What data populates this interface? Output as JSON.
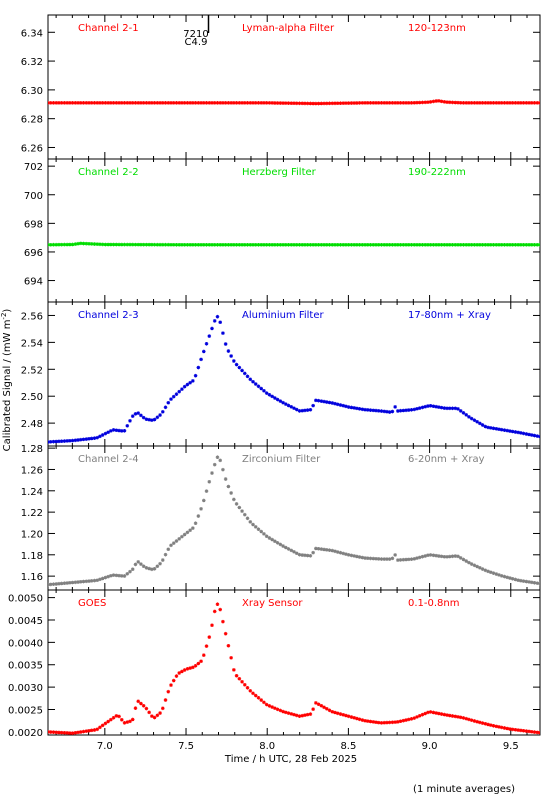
{
  "figure": {
    "ylabel": "Calibrated Signal / (mW m",
    "ylabel_sup": "-2",
    "ylabel_close": ")",
    "xlabel": "Time / h UTC, 28 Feb 2025",
    "footnote": "(1 minute averages)",
    "flare_marker": {
      "line1": "7210",
      "line2": "C4.9"
    },
    "colors": {
      "red": "#ff0000",
      "green": "#00dd00",
      "blue": "#0000dd",
      "grey": "#808080",
      "black": "#000000"
    }
  },
  "chart_data": [
    {
      "type": "scatter",
      "channel": "Channel 2-1",
      "filter": "Lyman-alpha Filter",
      "band": "120-123nm",
      "color": "#ff0000",
      "xlim": [
        6.65,
        9.68
      ],
      "ylim": [
        6.252,
        6.352
      ],
      "xticks": [
        7.0,
        7.5,
        8.0,
        8.5,
        9.0,
        9.5
      ],
      "yticks": [
        6.26,
        6.28,
        6.3,
        6.32,
        6.34
      ],
      "ytick_labels": [
        "6.26",
        "6.28",
        "6.30",
        "6.32",
        "6.34"
      ],
      "series": [
        {
          "x": [
            6.65,
            7.0,
            7.5,
            8.0,
            8.3,
            8.6,
            8.9,
            9.0,
            9.05,
            9.1,
            9.2,
            9.4,
            9.68
          ],
          "values": [
            6.291,
            6.291,
            6.291,
            6.291,
            6.2905,
            6.291,
            6.291,
            6.2915,
            6.2925,
            6.2915,
            6.291,
            6.291,
            6.291
          ]
        }
      ]
    },
    {
      "type": "scatter",
      "channel": "Channel 2-2",
      "filter": "Herzberg Filter",
      "band": "190-222nm",
      "color": "#00dd00",
      "xlim": [
        6.65,
        9.68
      ],
      "ylim": [
        692.5,
        702.5
      ],
      "xticks": [
        7.0,
        7.5,
        8.0,
        8.5,
        9.0,
        9.5
      ],
      "yticks": [
        694,
        696,
        698,
        700,
        702
      ],
      "ytick_labels": [
        "694",
        "696",
        "698",
        "700",
        "702"
      ],
      "series": [
        {
          "x": [
            6.65,
            6.8,
            6.85,
            7.0,
            7.5,
            8.0,
            8.5,
            9.0,
            9.5,
            9.68
          ],
          "values": [
            696.5,
            696.52,
            696.6,
            696.52,
            696.5,
            696.5,
            696.5,
            696.5,
            696.5,
            696.5
          ]
        }
      ]
    },
    {
      "type": "scatter",
      "channel": "Channel 2-3",
      "filter": "Aluminium Filter",
      "band": "17-80nm + Xray",
      "color": "#0000dd",
      "xlim": [
        6.65,
        9.68
      ],
      "ylim": [
        2.463,
        2.57
      ],
      "xticks": [
        7.0,
        7.5,
        8.0,
        8.5,
        9.0,
        9.5
      ],
      "yticks": [
        2.48,
        2.5,
        2.52,
        2.54,
        2.56
      ],
      "ytick_labels": [
        "2.48",
        "2.50",
        "2.52",
        "2.54",
        "2.56"
      ],
      "series": [
        {
          "x": [
            6.65,
            6.8,
            6.95,
            7.05,
            7.12,
            7.17,
            7.2,
            7.25,
            7.3,
            7.35,
            7.4,
            7.5,
            7.55,
            7.6,
            7.65,
            7.68,
            7.7,
            7.75,
            7.8,
            7.9,
            8.0,
            8.1,
            8.2,
            8.27,
            8.3,
            8.4,
            8.5,
            8.6,
            8.7,
            8.77,
            8.78,
            8.8,
            8.9,
            9.0,
            9.1,
            9.17,
            9.25,
            9.35,
            9.45,
            9.55,
            9.68
          ],
          "values": [
            2.466,
            2.467,
            2.469,
            2.475,
            2.474,
            2.485,
            2.488,
            2.483,
            2.482,
            2.487,
            2.497,
            2.508,
            2.512,
            2.53,
            2.547,
            2.557,
            2.56,
            2.536,
            2.525,
            2.512,
            2.502,
            2.495,
            2.489,
            2.49,
            2.497,
            2.495,
            2.492,
            2.49,
            2.489,
            2.488,
            2.494,
            2.489,
            2.49,
            2.493,
            2.491,
            2.491,
            2.484,
            2.477,
            2.475,
            2.473,
            2.47
          ]
        }
      ]
    },
    {
      "type": "scatter",
      "channel": "Channel 2-4",
      "filter": "Zirconium Filter",
      "band": "6-20nm + Xray",
      "color": "#808080",
      "xlim": [
        6.65,
        9.68
      ],
      "ylim": [
        1.147,
        1.282
      ],
      "xticks": [
        7.0,
        7.5,
        8.0,
        8.5,
        9.0,
        9.5
      ],
      "yticks": [
        1.16,
        1.18,
        1.2,
        1.22,
        1.24,
        1.26,
        1.28
      ],
      "ytick_labels": [
        "1.16",
        "1.18",
        "1.20",
        "1.22",
        "1.24",
        "1.26",
        "1.28"
      ],
      "series": [
        {
          "x": [
            6.65,
            6.8,
            6.95,
            7.05,
            7.12,
            7.17,
            7.2,
            7.25,
            7.3,
            7.35,
            7.4,
            7.5,
            7.55,
            7.6,
            7.65,
            7.68,
            7.7,
            7.75,
            7.8,
            7.9,
            8.0,
            8.1,
            8.2,
            8.27,
            8.3,
            8.4,
            8.5,
            8.6,
            8.7,
            8.77,
            8.78,
            8.8,
            8.9,
            9.0,
            9.1,
            9.17,
            9.25,
            9.35,
            9.45,
            9.55,
            9.68
          ],
          "values": [
            1.152,
            1.154,
            1.156,
            1.161,
            1.16,
            1.166,
            1.174,
            1.168,
            1.166,
            1.173,
            1.188,
            1.2,
            1.206,
            1.226,
            1.252,
            1.266,
            1.274,
            1.248,
            1.23,
            1.21,
            1.197,
            1.188,
            1.18,
            1.179,
            1.186,
            1.184,
            1.18,
            1.177,
            1.176,
            1.176,
            1.183,
            1.175,
            1.176,
            1.18,
            1.178,
            1.179,
            1.172,
            1.165,
            1.16,
            1.156,
            1.153
          ]
        }
      ]
    },
    {
      "type": "scatter",
      "channel": "GOES",
      "filter": "Xray Sensor",
      "band": "0.1-0.8nm",
      "color": "#ff0000",
      "xlim": [
        6.65,
        9.68
      ],
      "ylim": [
        0.00193,
        0.00517
      ],
      "xticks": [
        7.0,
        7.5,
        8.0,
        8.5,
        9.0,
        9.5
      ],
      "xtick_labels": [
        "7.0",
        "7.5",
        "8.0",
        "8.5",
        "9.0",
        "9.5"
      ],
      "yticks": [
        0.002,
        0.0025,
        0.003,
        0.0035,
        0.004,
        0.0045,
        0.005
      ],
      "ytick_labels": [
        "0.0020",
        "0.0025",
        "0.0030",
        "0.0035",
        "0.0040",
        "0.0045",
        "0.0050"
      ],
      "series": [
        {
          "x": [
            6.65,
            6.8,
            6.95,
            7.0,
            7.08,
            7.12,
            7.17,
            7.2,
            7.25,
            7.3,
            7.35,
            7.4,
            7.45,
            7.5,
            7.55,
            7.6,
            7.65,
            7.68,
            7.7,
            7.75,
            7.8,
            7.9,
            8.0,
            8.1,
            8.2,
            8.27,
            8.3,
            8.4,
            8.5,
            8.6,
            8.7,
            8.8,
            8.9,
            9.0,
            9.1,
            9.2,
            9.3,
            9.4,
            9.5,
            9.68
          ],
          "values": [
            0.002,
            0.00197,
            0.00205,
            0.00218,
            0.00238,
            0.0022,
            0.00225,
            0.0027,
            0.00255,
            0.0023,
            0.00245,
            0.003,
            0.0033,
            0.0034,
            0.00345,
            0.0036,
            0.0042,
            0.00475,
            0.0049,
            0.0041,
            0.0033,
            0.0029,
            0.0026,
            0.00245,
            0.00235,
            0.0024,
            0.00265,
            0.00245,
            0.00235,
            0.00225,
            0.0022,
            0.00222,
            0.0023,
            0.00245,
            0.00238,
            0.00232,
            0.00222,
            0.00213,
            0.00206,
            0.00198
          ]
        }
      ]
    }
  ]
}
